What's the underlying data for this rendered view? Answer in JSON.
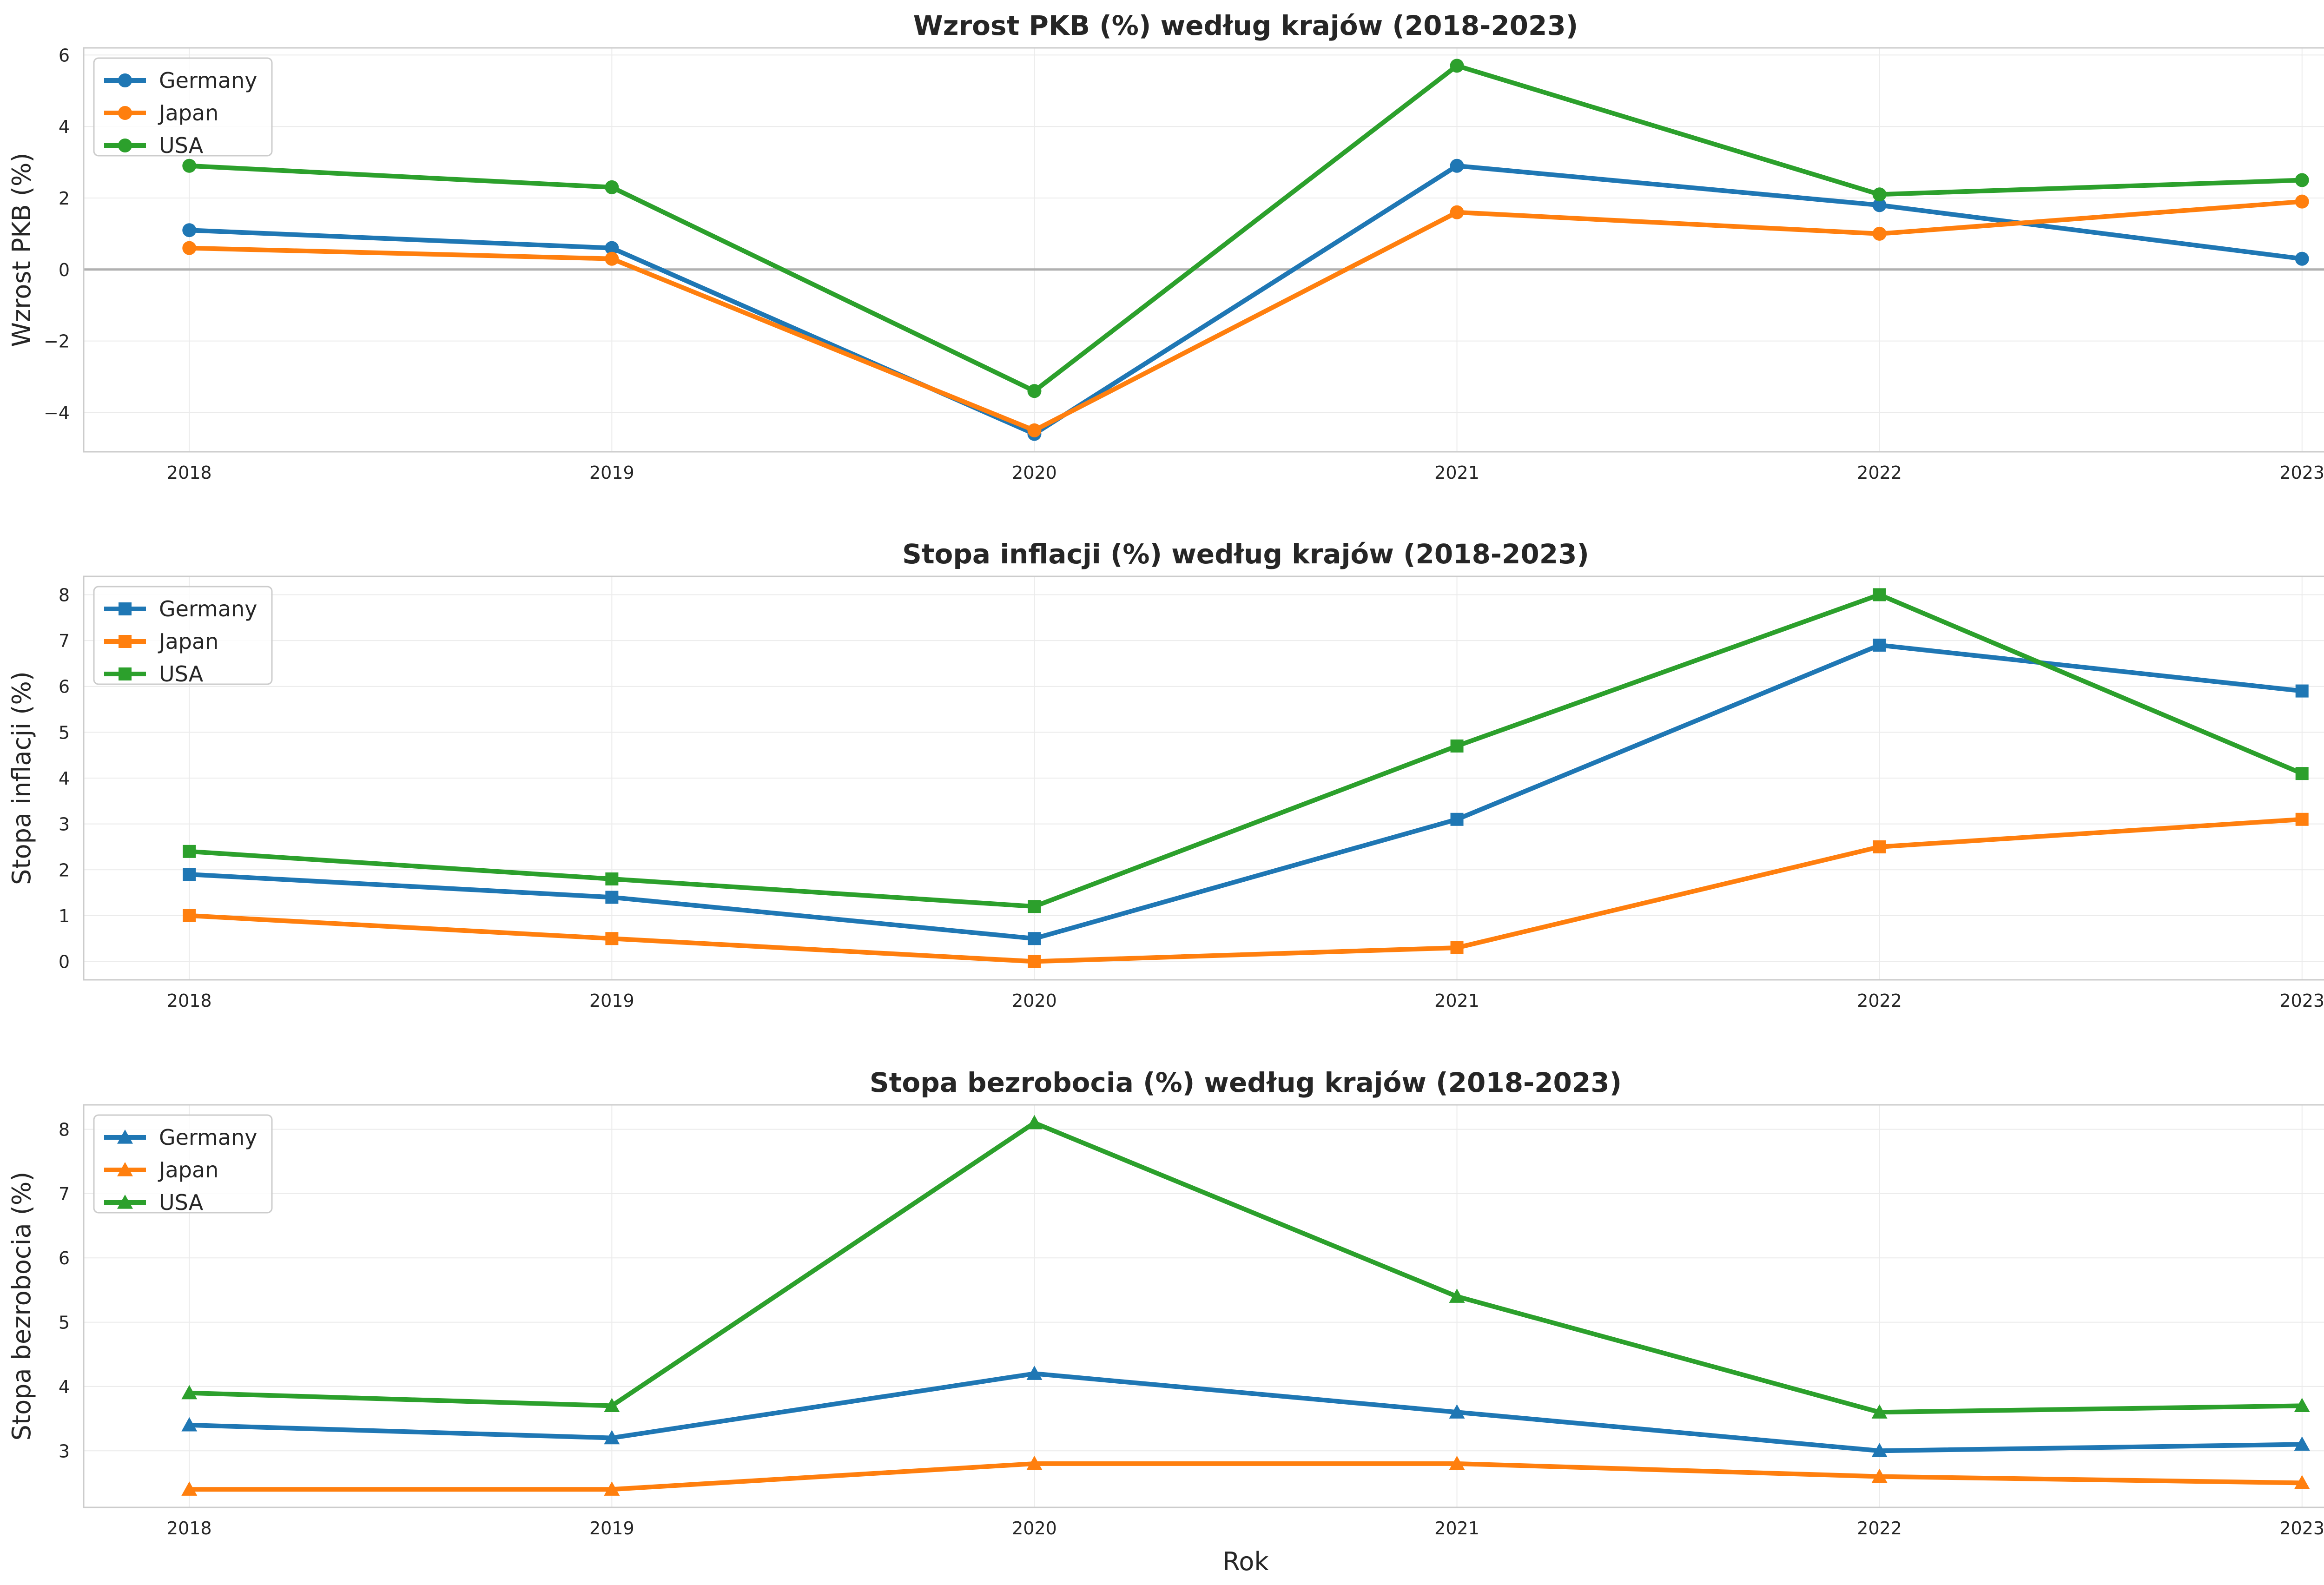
{
  "colors": {
    "Germany": "#1f77b4",
    "Japan": "#ff7f0e",
    "USA": "#2ca02c",
    "grid": "#ebebeb",
    "frame": "#cccccc",
    "zero_line": "#b0b0b0"
  },
  "chart_data": [
    {
      "type": "line",
      "title": "Wzrost PKB (%) według krajów (2018-2023)",
      "xlabel": "",
      "ylabel": "Wzrost PKB (%)",
      "marker": "circle",
      "x": [
        2018,
        2019,
        2020,
        2021,
        2022,
        2023
      ],
      "x_tick_labels": [
        "2018",
        "2019",
        "2020",
        "2021",
        "2022",
        "2023"
      ],
      "y_ticks": [
        -4,
        -2,
        0,
        2,
        4,
        6
      ],
      "y_tick_labels": [
        "−4",
        "−2",
        "0",
        "2",
        "4",
        "6"
      ],
      "ylim": [
        -5.1,
        6.2
      ],
      "zero_line": true,
      "grid": true,
      "legend_position": "top-left",
      "series": [
        {
          "name": "Germany",
          "values": [
            1.1,
            0.6,
            -4.6,
            2.9,
            1.8,
            0.3
          ]
        },
        {
          "name": "Japan",
          "values": [
            0.6,
            0.3,
            -4.5,
            1.6,
            1.0,
            1.9
          ]
        },
        {
          "name": "USA",
          "values": [
            2.9,
            2.3,
            -3.4,
            5.7,
            2.1,
            2.5
          ]
        }
      ]
    },
    {
      "type": "line",
      "title": "Stopa inflacji (%) według krajów (2018-2023)",
      "xlabel": "",
      "ylabel": "Stopa inflacji (%)",
      "marker": "square",
      "x": [
        2018,
        2019,
        2020,
        2021,
        2022,
        2023
      ],
      "x_tick_labels": [
        "2018",
        "2019",
        "2020",
        "2021",
        "2022",
        "2023"
      ],
      "y_ticks": [
        0,
        1,
        2,
        3,
        4,
        5,
        6,
        7,
        8
      ],
      "y_tick_labels": [
        "0",
        "1",
        "2",
        "3",
        "4",
        "5",
        "6",
        "7",
        "8"
      ],
      "ylim": [
        -0.4,
        8.4
      ],
      "zero_line": false,
      "grid": true,
      "legend_position": "top-left",
      "series": [
        {
          "name": "Germany",
          "values": [
            1.9,
            1.4,
            0.5,
            3.1,
            6.9,
            5.9
          ]
        },
        {
          "name": "Japan",
          "values": [
            1.0,
            0.5,
            0.0,
            0.3,
            2.5,
            3.1
          ]
        },
        {
          "name": "USA",
          "values": [
            2.4,
            1.8,
            1.2,
            4.7,
            8.0,
            4.1
          ]
        }
      ]
    },
    {
      "type": "line",
      "title": "Stopa bezrobocia (%) według krajów (2018-2023)",
      "xlabel": "Rok",
      "ylabel": "Stopa bezrobocia (%)",
      "marker": "triangle",
      "x": [
        2018,
        2019,
        2020,
        2021,
        2022,
        2023
      ],
      "x_tick_labels": [
        "2018",
        "2019",
        "2020",
        "2021",
        "2022",
        "2023"
      ],
      "y_ticks": [
        3,
        4,
        5,
        6,
        7,
        8
      ],
      "y_tick_labels": [
        "3",
        "4",
        "5",
        "6",
        "7",
        "8"
      ],
      "ylim": [
        2.12,
        8.38
      ],
      "zero_line": false,
      "grid": true,
      "legend_position": "top-left",
      "series": [
        {
          "name": "Germany",
          "values": [
            3.4,
            3.2,
            4.2,
            3.6,
            3.0,
            3.1
          ]
        },
        {
          "name": "Japan",
          "values": [
            2.4,
            2.4,
            2.8,
            2.8,
            2.6,
            2.5
          ]
        },
        {
          "name": "USA",
          "values": [
            3.9,
            3.7,
            8.1,
            5.4,
            3.6,
            3.7
          ]
        }
      ]
    }
  ]
}
